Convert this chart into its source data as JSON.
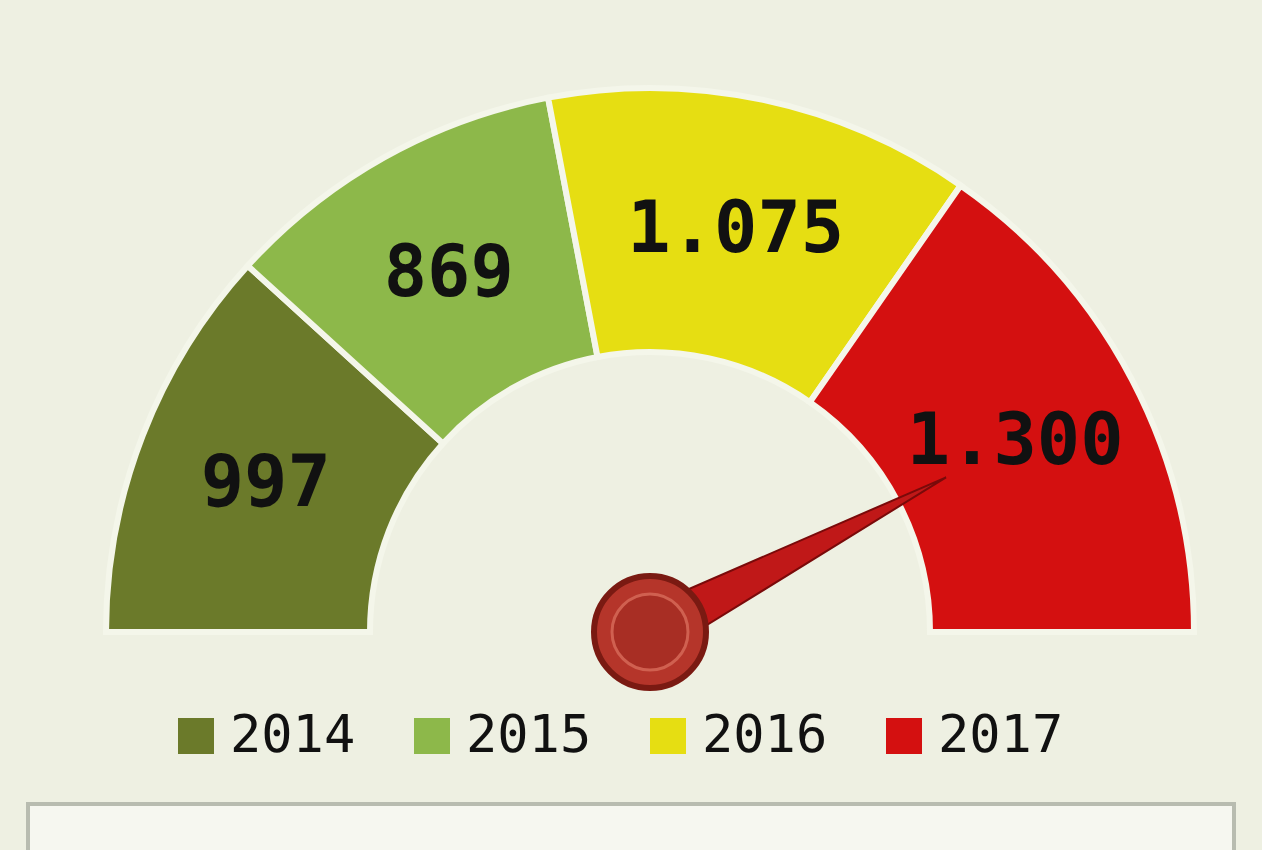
{
  "chart_data": {
    "type": "donut",
    "categories": [
      "2014",
      "2015",
      "2016",
      "2017"
    ],
    "values": [
      997,
      869,
      1075,
      1300
    ],
    "value_labels": [
      "997",
      "869",
      "1.075",
      "1.300"
    ],
    "colors": [
      "#6b7a2a",
      "#8db84a",
      "#e6de12",
      "#d41010"
    ],
    "needle": "2017",
    "legend": "bottom"
  }
}
